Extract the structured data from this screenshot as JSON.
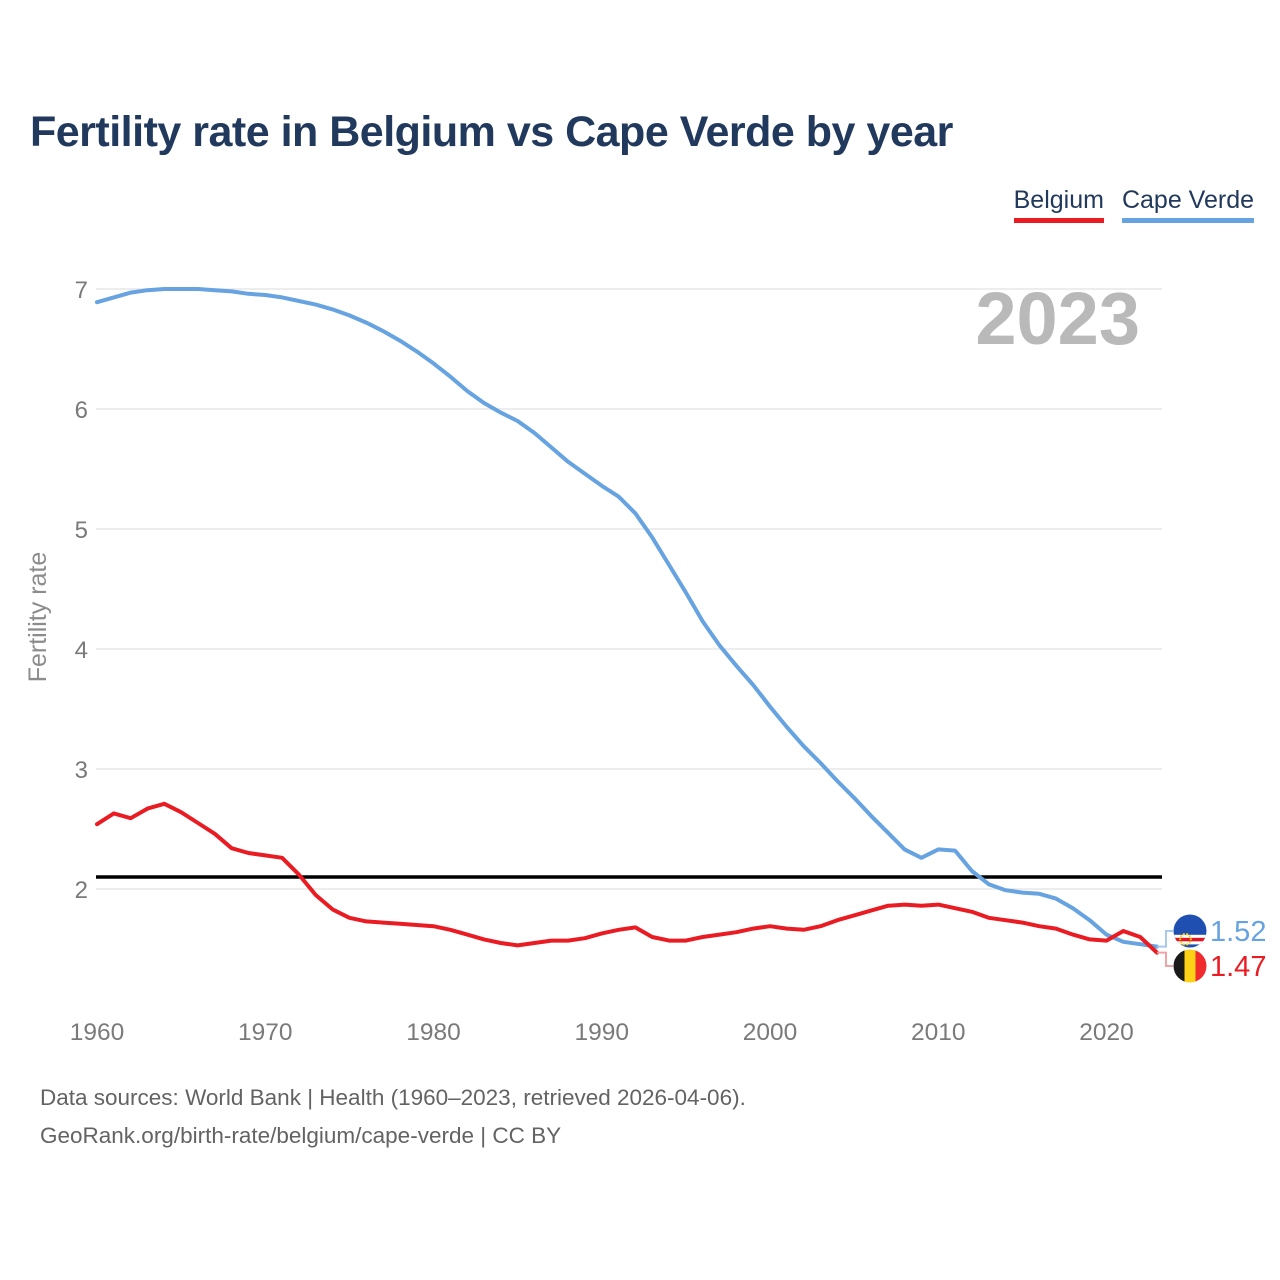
{
  "header": {
    "title": "Fertility rate in Belgium vs Cape Verde by year",
    "title_color": "#21395c"
  },
  "legend": {
    "items": [
      {
        "label": "Belgium",
        "color": "#ea1c23"
      },
      {
        "label": "Cape Verde",
        "color": "#66a3e0"
      }
    ]
  },
  "watermark": "2023",
  "footer": {
    "line1": "Data sources: World Bank | Health (1960–2023, retrieved 2026-04-06).",
    "line2": "GeoRank.org/birth-rate/belgium/cape-verde | CC BY"
  },
  "chart_data": {
    "type": "line",
    "title": "Fertility rate in Belgium vs Cape Verde by year",
    "xlabel": "",
    "ylabel": "Fertility rate",
    "x_range": [
      1960,
      2023
    ],
    "ylim": [
      1.4,
      7.1
    ],
    "yticks": [
      2,
      3,
      4,
      5,
      6,
      7
    ],
    "xticks": [
      1960,
      1970,
      1980,
      1990,
      2000,
      2010,
      2020
    ],
    "grid": "horizontal",
    "legend_position": "top-right",
    "reference_line": {
      "value": 2.1,
      "color": "#000000"
    },
    "x": [
      1960,
      1961,
      1962,
      1963,
      1964,
      1965,
      1966,
      1967,
      1968,
      1969,
      1970,
      1971,
      1972,
      1973,
      1974,
      1975,
      1976,
      1977,
      1978,
      1979,
      1980,
      1981,
      1982,
      1983,
      1984,
      1985,
      1986,
      1987,
      1988,
      1989,
      1990,
      1991,
      1992,
      1993,
      1994,
      1995,
      1996,
      1997,
      1998,
      1999,
      2000,
      2001,
      2002,
      2003,
      2004,
      2005,
      2006,
      2007,
      2008,
      2009,
      2010,
      2011,
      2012,
      2013,
      2014,
      2015,
      2016,
      2017,
      2018,
      2019,
      2020,
      2021,
      2022,
      2023
    ],
    "series": [
      {
        "name": "Cape Verde",
        "color": "#66a3e0",
        "connector_color": "#a9c9ee",
        "end_value_label": "1.52",
        "values": [
          6.89,
          6.93,
          6.97,
          6.99,
          7.0,
          7.0,
          7.0,
          6.99,
          6.98,
          6.96,
          6.95,
          6.93,
          6.9,
          6.87,
          6.83,
          6.78,
          6.72,
          6.65,
          6.57,
          6.48,
          6.38,
          6.27,
          6.15,
          6.05,
          5.97,
          5.9,
          5.8,
          5.68,
          5.56,
          5.46,
          5.36,
          5.27,
          5.13,
          4.93,
          4.7,
          4.47,
          4.23,
          4.03,
          3.86,
          3.7,
          3.52,
          3.35,
          3.19,
          3.05,
          2.9,
          2.76,
          2.61,
          2.47,
          2.33,
          2.26,
          2.33,
          2.32,
          2.15,
          2.04,
          1.99,
          1.97,
          1.96,
          1.92,
          1.84,
          1.74,
          1.62,
          1.56,
          1.54,
          1.52
        ]
      },
      {
        "name": "Belgium",
        "color": "#ea1c23",
        "connector_color": "#f2a3a6",
        "end_value_label": "1.47",
        "values": [
          2.54,
          2.63,
          2.59,
          2.67,
          2.71,
          2.64,
          2.55,
          2.46,
          2.34,
          2.3,
          2.28,
          2.26,
          2.12,
          1.95,
          1.83,
          1.76,
          1.73,
          1.72,
          1.71,
          1.7,
          1.69,
          1.66,
          1.62,
          1.58,
          1.55,
          1.53,
          1.55,
          1.57,
          1.57,
          1.59,
          1.63,
          1.66,
          1.68,
          1.6,
          1.57,
          1.57,
          1.6,
          1.62,
          1.64,
          1.67,
          1.69,
          1.67,
          1.66,
          1.69,
          1.74,
          1.78,
          1.82,
          1.86,
          1.87,
          1.86,
          1.87,
          1.84,
          1.81,
          1.76,
          1.74,
          1.72,
          1.69,
          1.67,
          1.62,
          1.58,
          1.57,
          1.65,
          1.6,
          1.47
        ]
      }
    ],
    "colors": {
      "grid": "#e7e7e7",
      "tick_text": "#7a7a7a",
      "watermark": "#b9b9b9",
      "axis_title": "#8c8c8c"
    }
  },
  "flags": {
    "cape_verde": {
      "blue": "#1f4fb0",
      "white": "#ffffff",
      "red": "#e8131d",
      "yellow": "#ffd400"
    },
    "belgium": {
      "black": "#1a1a1a",
      "yellow": "#fcd116",
      "red": "#ef2b2d"
    }
  }
}
